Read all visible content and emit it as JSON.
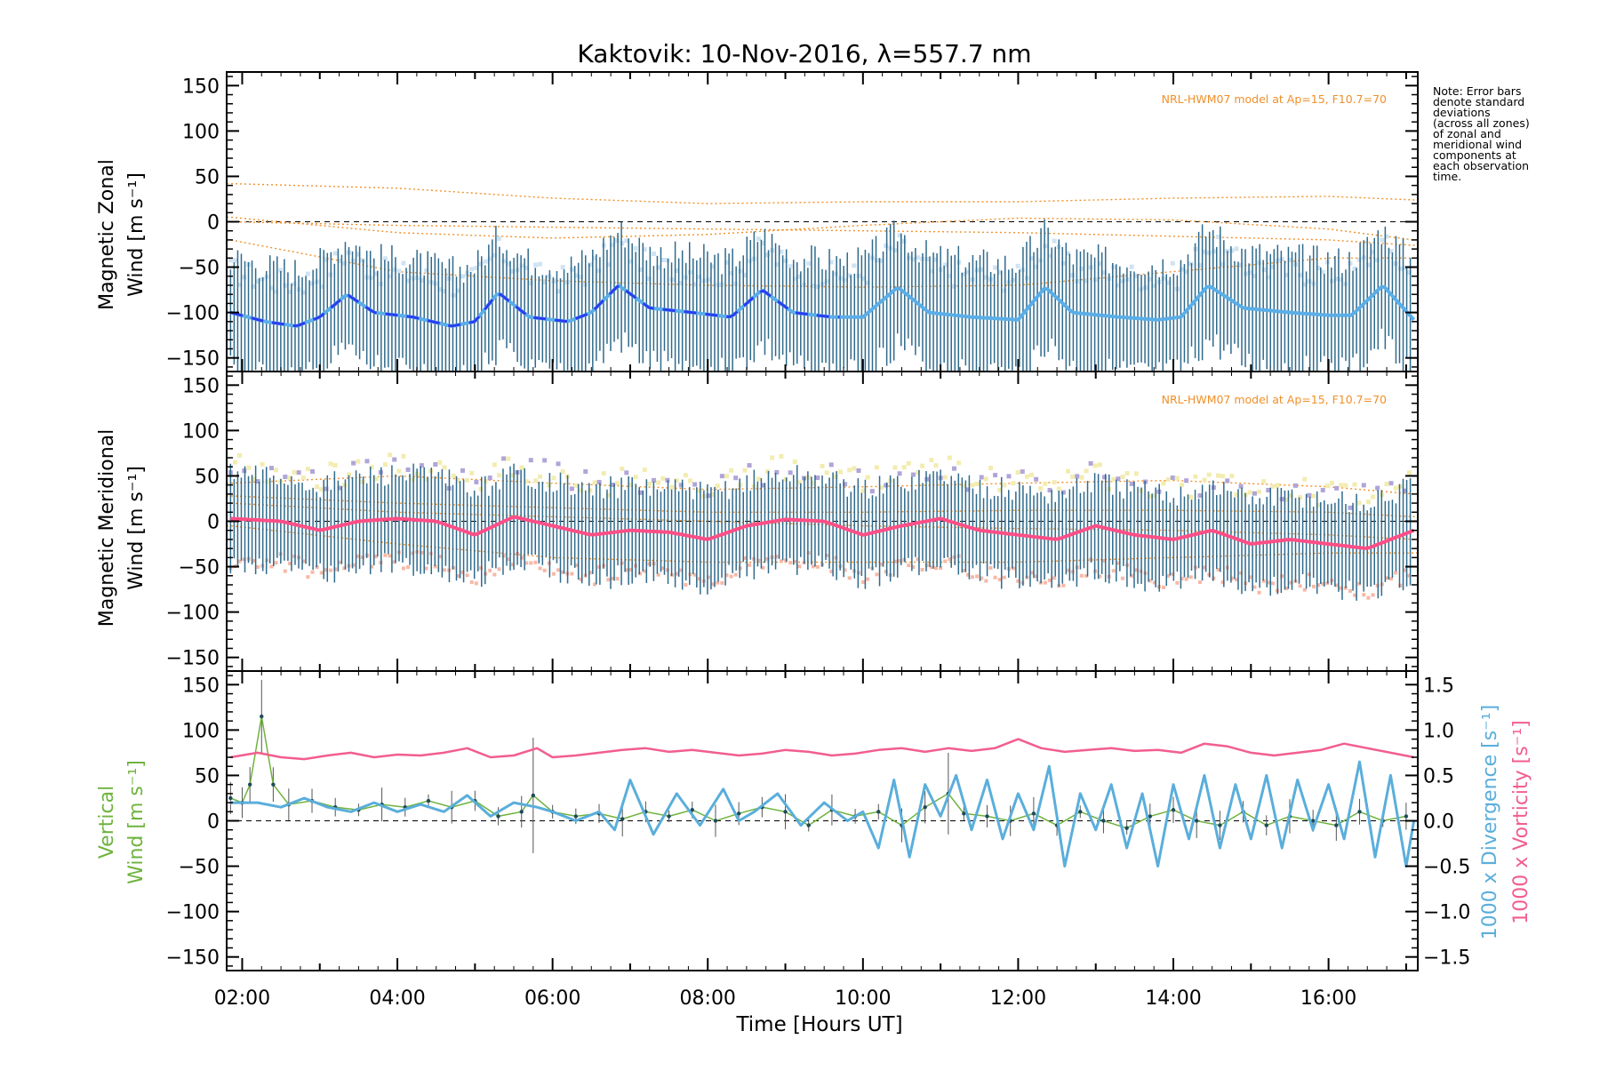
{
  "figure": {
    "title": "Kaktovik: 10-Nov-2016, λ=557.7 nm",
    "xlabel": "Time [Hours UT]",
    "x_ticks": [
      "02:00",
      "04:00",
      "06:00",
      "08:00",
      "10:00",
      "12:00",
      "14:00",
      "16:00"
    ],
    "note_lines": [
      "Note: Error bars",
      "denote standard",
      "deviations",
      "(across all zones)",
      "of zonal and",
      "meridional wind",
      "components at",
      "each observation",
      "time."
    ],
    "model_label": "NRL-HWM07 model at Ap=15, F10.7=70",
    "colors": {
      "zonal": "#2b3df0",
      "zonal_light": "#5aaee8",
      "meridional": "#ff4f86",
      "errorbar": "#2f6a8c",
      "model": "#f0902a",
      "vertical": "#6fb33e",
      "divergence": "#5aaedb",
      "vorticity": "#f25e8e",
      "scatter_purple": "#b0a5d8",
      "scatter_yellow": "#f3ecb0"
    }
  },
  "chart_data": [
    {
      "type": "line",
      "panel": "zonal",
      "ylabel_line1": "Magnetic Zonal",
      "ylabel_line2": "Wind [m s⁻¹]",
      "y_ticks": [
        "150",
        "100",
        "50",
        "0",
        "−50",
        "−100",
        "−150"
      ],
      "ylim": [
        -165,
        165
      ],
      "xlim": [
        1.8,
        17.15
      ],
      "x": [
        1.85,
        2.3,
        2.7,
        3.0,
        3.35,
        3.7,
        4.2,
        4.7,
        5.0,
        5.3,
        5.7,
        6.2,
        6.5,
        6.85,
        7.25,
        7.8,
        8.3,
        8.7,
        9.1,
        9.6,
        10.0,
        10.45,
        10.85,
        11.4,
        12.0,
        12.35,
        12.7,
        13.3,
        13.8,
        14.1,
        14.45,
        14.9,
        15.5,
        16.0,
        16.3,
        16.7,
        17.1
      ],
      "series": [
        {
          "values": [
            -100,
            -110,
            -115,
            -105,
            -80,
            -100,
            -105,
            -115,
            -110,
            -78,
            -105,
            -110,
            -100,
            -70,
            -95,
            -100,
            -105,
            -75,
            -100,
            -105,
            -105,
            -72,
            -100,
            -105,
            -108,
            -72,
            -100,
            -105,
            -108,
            -105,
            -70,
            -95,
            -100,
            -103,
            -103,
            -70,
            -108
          ]
        }
      ],
      "errorbar_sd": 60,
      "model_curves": [
        {
          "x": [
            1.85,
            4,
            6,
            8,
            10,
            12,
            14,
            16,
            17.1
          ],
          "values": [
            42,
            37,
            26,
            20,
            22,
            22,
            26,
            28,
            24
          ]
        },
        {
          "x": [
            1.85,
            4,
            6,
            8,
            10,
            12,
            14,
            16,
            17.1
          ],
          "values": [
            5,
            -12,
            -18,
            -14,
            -4,
            4,
            2,
            -8,
            -20
          ]
        },
        {
          "x": [
            1.85,
            4,
            6,
            8,
            10,
            12,
            14,
            16,
            17.1
          ],
          "values": [
            0,
            -4,
            -6,
            -8,
            -10,
            -12,
            -16,
            -20,
            -26
          ]
        },
        {
          "x": [
            1.85,
            4,
            6,
            8,
            10,
            12,
            14,
            16,
            17.1
          ],
          "values": [
            -20,
            -55,
            -65,
            -70,
            -72,
            -70,
            -55,
            -40,
            -40
          ]
        }
      ]
    },
    {
      "type": "line",
      "panel": "meridional",
      "ylabel_line1": "Magnetic Meridional",
      "ylabel_line2": "Wind [m s⁻¹]",
      "y_ticks": [
        "150",
        "100",
        "50",
        "0",
        "−50",
        "−100",
        "−150"
      ],
      "ylim": [
        -165,
        165
      ],
      "xlim": [
        1.8,
        17.15
      ],
      "x": [
        1.85,
        2.5,
        3.0,
        3.5,
        4.0,
        4.5,
        5.0,
        5.5,
        6.0,
        6.5,
        7.0,
        7.5,
        8.0,
        8.5,
        9.0,
        9.5,
        10.0,
        10.5,
        11.0,
        11.5,
        12.0,
        12.5,
        13.0,
        13.5,
        14.0,
        14.5,
        15.0,
        15.5,
        16.0,
        16.5,
        17.1
      ],
      "series": [
        {
          "values": [
            3,
            0,
            -10,
            0,
            3,
            0,
            -15,
            5,
            -5,
            -15,
            -10,
            -12,
            -20,
            -5,
            2,
            0,
            -15,
            -5,
            3,
            -10,
            -15,
            -20,
            -5,
            -15,
            -20,
            -10,
            -25,
            -20,
            -25,
            -30,
            -10
          ]
        }
      ],
      "errorbar_sd": 48,
      "model_curves": [
        {
          "x": [
            1.85,
            4,
            6,
            8,
            10,
            12,
            14,
            16,
            17.1
          ],
          "values": [
            42,
            50,
            42,
            35,
            38,
            42,
            45,
            38,
            30
          ]
        },
        {
          "x": [
            1.85,
            4,
            6,
            8,
            10,
            12,
            14,
            16,
            17.1
          ],
          "values": [
            28,
            20,
            15,
            10,
            10,
            12,
            12,
            10,
            5
          ]
        },
        {
          "x": [
            1.85,
            4,
            6,
            8,
            10,
            12,
            14,
            16,
            17.1
          ],
          "values": [
            20,
            10,
            5,
            0,
            -5,
            -8,
            -10,
            -15,
            -20
          ]
        },
        {
          "x": [
            1.85,
            4,
            6,
            8,
            10,
            12,
            14,
            16,
            17.1
          ],
          "values": [
            -5,
            -25,
            -40,
            -45,
            -45,
            -45,
            -40,
            -35,
            -35
          ]
        }
      ]
    },
    {
      "type": "line",
      "panel": "vertical",
      "ylabel_line1": "Vertical",
      "ylabel_line2": "Wind [m s⁻¹]",
      "y_ticks": [
        "150",
        "100",
        "50",
        "0",
        "−50",
        "−100",
        "−150"
      ],
      "ylim": [
        -165,
        165
      ],
      "y2label_div": "1000 x Divergence [s⁻¹]",
      "y2label_vort": "1000 x Vorticity [s⁻¹]",
      "y2_ticks": [
        "1.5",
        "1.0",
        "0.5",
        "0.0",
        "−0.5",
        "−1.0",
        "−1.5"
      ],
      "y2lim": [
        -1.65,
        1.65
      ],
      "xlim": [
        1.8,
        17.15
      ],
      "vertical_wind": {
        "x": [
          1.85,
          2.0,
          2.1,
          2.25,
          2.4,
          2.6,
          2.9,
          3.2,
          3.5,
          3.8,
          4.1,
          4.4,
          4.7,
          5.0,
          5.3,
          5.6,
          5.75,
          6.0,
          6.3,
          6.6,
          6.9,
          7.2,
          7.5,
          7.8,
          8.1,
          8.4,
          8.7,
          9.0,
          9.3,
          9.6,
          9.9,
          10.2,
          10.5,
          10.8,
          11.1,
          11.3,
          11.6,
          11.9,
          12.2,
          12.5,
          12.8,
          13.1,
          13.4,
          13.7,
          14.0,
          14.3,
          14.6,
          14.9,
          15.2,
          15.5,
          15.8,
          16.1,
          16.4,
          16.7,
          17.0
        ],
        "values": [
          25,
          20,
          40,
          115,
          40,
          18,
          22,
          15,
          12,
          18,
          15,
          22,
          15,
          22,
          5,
          10,
          28,
          10,
          5,
          8,
          2,
          10,
          5,
          12,
          0,
          8,
          15,
          10,
          -5,
          12,
          5,
          10,
          -5,
          15,
          30,
          8,
          5,
          0,
          8,
          -5,
          10,
          0,
          -8,
          5,
          12,
          0,
          -5,
          10,
          -5,
          5,
          0,
          -5,
          10,
          0,
          5
        ]
      },
      "divergence": {
        "x": [
          1.85,
          2.2,
          2.5,
          2.8,
          3.1,
          3.4,
          3.7,
          4.0,
          4.3,
          4.6,
          4.9,
          5.2,
          5.5,
          5.8,
          6.0,
          6.3,
          6.6,
          6.8,
          7.0,
          7.3,
          7.6,
          7.9,
          8.2,
          8.4,
          8.6,
          8.9,
          9.2,
          9.5,
          9.8,
          10.0,
          10.2,
          10.4,
          10.6,
          10.8,
          11.0,
          11.2,
          11.4,
          11.6,
          11.8,
          12.0,
          12.2,
          12.4,
          12.6,
          12.8,
          13.0,
          13.2,
          13.4,
          13.6,
          13.8,
          14.0,
          14.2,
          14.4,
          14.6,
          14.8,
          15.0,
          15.2,
          15.4,
          15.6,
          15.8,
          16.0,
          16.2,
          16.4,
          16.6,
          16.8,
          17.0,
          17.1
        ],
        "values": [
          0.2,
          0.2,
          0.15,
          0.25,
          0.15,
          0.1,
          0.2,
          0.1,
          0.18,
          0.1,
          0.28,
          0.05,
          0.2,
          0.15,
          0.1,
          0.0,
          0.1,
          -0.1,
          0.45,
          -0.15,
          0.3,
          -0.05,
          0.35,
          0.0,
          0.1,
          0.3,
          -0.05,
          0.2,
          0.0,
          0.1,
          -0.3,
          0.45,
          -0.4,
          0.4,
          0.05,
          0.5,
          -0.1,
          0.45,
          -0.2,
          0.3,
          -0.1,
          0.6,
          -0.5,
          0.3,
          -0.1,
          0.4,
          -0.3,
          0.3,
          -0.5,
          0.4,
          -0.2,
          0.5,
          -0.3,
          0.4,
          -0.2,
          0.5,
          -0.3,
          0.45,
          -0.1,
          0.4,
          -0.2,
          0.65,
          -0.4,
          0.5,
          -0.5,
          0.0
        ]
      },
      "vorticity": {
        "x": [
          1.85,
          2.2,
          2.5,
          2.8,
          3.1,
          3.4,
          3.7,
          4.0,
          4.3,
          4.6,
          4.9,
          5.2,
          5.5,
          5.8,
          6.0,
          6.3,
          6.6,
          6.9,
          7.2,
          7.5,
          7.8,
          8.1,
          8.4,
          8.7,
          9.0,
          9.3,
          9.6,
          9.9,
          10.2,
          10.5,
          10.8,
          11.1,
          11.4,
          11.7,
          12.0,
          12.3,
          12.6,
          12.9,
          13.2,
          13.5,
          13.8,
          14.1,
          14.4,
          14.7,
          15.0,
          15.3,
          15.6,
          15.9,
          16.2,
          16.5,
          16.8,
          17.1
        ],
        "values": [
          0.7,
          0.75,
          0.7,
          0.68,
          0.72,
          0.75,
          0.7,
          0.73,
          0.72,
          0.75,
          0.8,
          0.7,
          0.72,
          0.8,
          0.7,
          0.72,
          0.75,
          0.78,
          0.8,
          0.76,
          0.78,
          0.75,
          0.72,
          0.74,
          0.78,
          0.76,
          0.72,
          0.74,
          0.78,
          0.8,
          0.76,
          0.8,
          0.77,
          0.8,
          0.9,
          0.8,
          0.76,
          0.78,
          0.8,
          0.77,
          0.78,
          0.75,
          0.85,
          0.82,
          0.75,
          0.72,
          0.75,
          0.78,
          0.85,
          0.8,
          0.75,
          0.7
        ]
      }
    }
  ]
}
